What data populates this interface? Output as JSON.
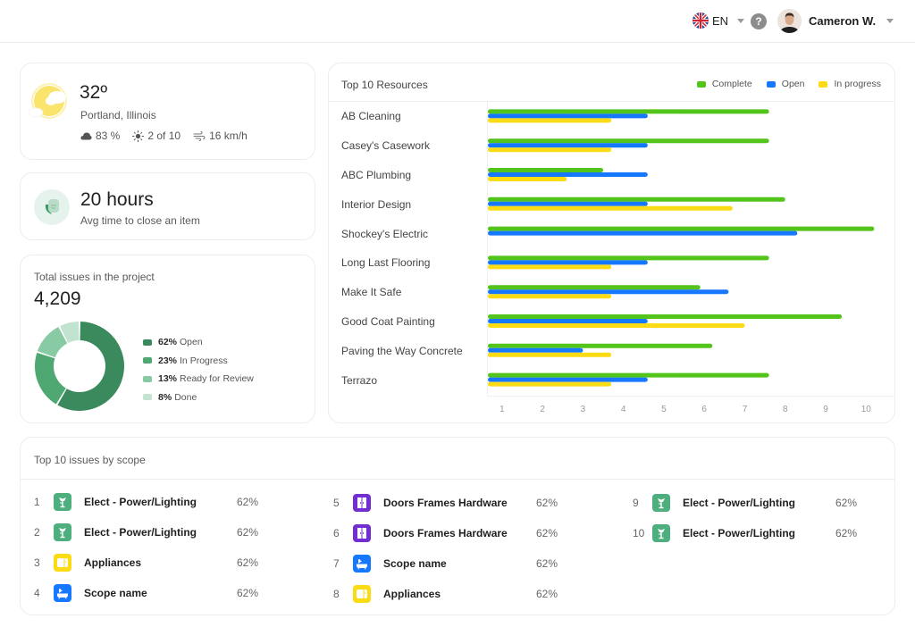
{
  "header": {
    "language": "EN",
    "language_icon": "uk-flag-icon",
    "help_label": "?",
    "user_name": "Cameron W."
  },
  "weather": {
    "temperature": "32º",
    "location": "Portland, Illinois",
    "humidity": "83 %",
    "uv": "2 of 10",
    "wind": "16 km/h",
    "icon": "partly-cloudy-icon"
  },
  "avg_close": {
    "value": "20 hours",
    "label": "Avg time to close an item"
  },
  "total_issues": {
    "title": "Total issues in the project",
    "value": "4,209",
    "legend": [
      {
        "pct": "62%",
        "label": "Open",
        "value": 62,
        "color": "#3b8a5d"
      },
      {
        "pct": "23%",
        "label": "In Progress",
        "value": 23,
        "color": "#4fa872"
      },
      {
        "pct": "13%",
        "label": "Ready for Review",
        "value": 13,
        "color": "#88caa3"
      },
      {
        "pct": "8%",
        "label": "Done",
        "value": 8,
        "color": "#c2e3cf"
      }
    ]
  },
  "chart_data": {
    "type": "bar",
    "orientation": "horizontal",
    "title": "Top 10 Resources",
    "categories": [
      "AB Cleaning",
      "Casey's Casework",
      "ABC Plumbing",
      "Interior Design",
      "Shockey's Electric",
      "Long Last Flooring",
      "Make It Safe",
      "Good Coat Painting",
      "Paving the Way Concrete",
      "Terrazo"
    ],
    "series": [
      {
        "name": "Complete",
        "color": "#52c41a",
        "values": [
          7.6,
          7.6,
          3.5,
          8.0,
          10.2,
          7.6,
          5.9,
          9.4,
          6.2,
          7.6
        ]
      },
      {
        "name": "Open",
        "color": "#1677ff",
        "values": [
          4.6,
          4.6,
          4.6,
          4.6,
          8.3,
          4.6,
          6.6,
          4.6,
          3.0,
          4.6
        ]
      },
      {
        "name": "In progress",
        "color": "#fadb14",
        "values": [
          3.7,
          3.7,
          2.6,
          6.7,
          0,
          3.7,
          3.7,
          7.0,
          3.7,
          3.7
        ]
      }
    ],
    "xticks": [
      "1",
      "2",
      "3",
      "4",
      "5",
      "6",
      "7",
      "8",
      "9",
      "10"
    ],
    "xlim": [
      0.65,
      10.7
    ],
    "legend_position": "top-right",
    "grid": false
  },
  "scope": {
    "title": "Top 10 issues by scope",
    "items": [
      {
        "num": "1",
        "name": "Elect - Power/Lighting",
        "pct": "62%",
        "icon": "lamp-icon",
        "color": "#4caf7d"
      },
      {
        "num": "2",
        "name": "Elect - Power/Lighting",
        "pct": "62%",
        "icon": "lamp-icon",
        "color": "#4caf7d"
      },
      {
        "num": "3",
        "name": "Appliances",
        "pct": "62%",
        "icon": "appliance-icon",
        "color": "#fadb14"
      },
      {
        "num": "4",
        "name": "Scope name",
        "pct": "62%",
        "icon": "bathtub-icon",
        "color": "#1677ff"
      },
      {
        "num": "5",
        "name": "Doors Frames Hardware",
        "pct": "62%",
        "icon": "door-icon",
        "color": "#722ed1"
      },
      {
        "num": "6",
        "name": "Doors Frames Hardware",
        "pct": "62%",
        "icon": "door-icon",
        "color": "#722ed1"
      },
      {
        "num": "7",
        "name": "Scope name",
        "pct": "62%",
        "icon": "bathtub-icon",
        "color": "#1677ff"
      },
      {
        "num": "8",
        "name": "Appliances",
        "pct": "62%",
        "icon": "appliance-icon",
        "color": "#fadb14"
      },
      {
        "num": "9",
        "name": "Elect - Power/Lighting",
        "pct": "62%",
        "icon": "lamp-icon",
        "color": "#4caf7d"
      },
      {
        "num": "10",
        "name": "Elect - Power/Lighting",
        "pct": "62%",
        "icon": "lamp-icon",
        "color": "#4caf7d"
      }
    ]
  }
}
